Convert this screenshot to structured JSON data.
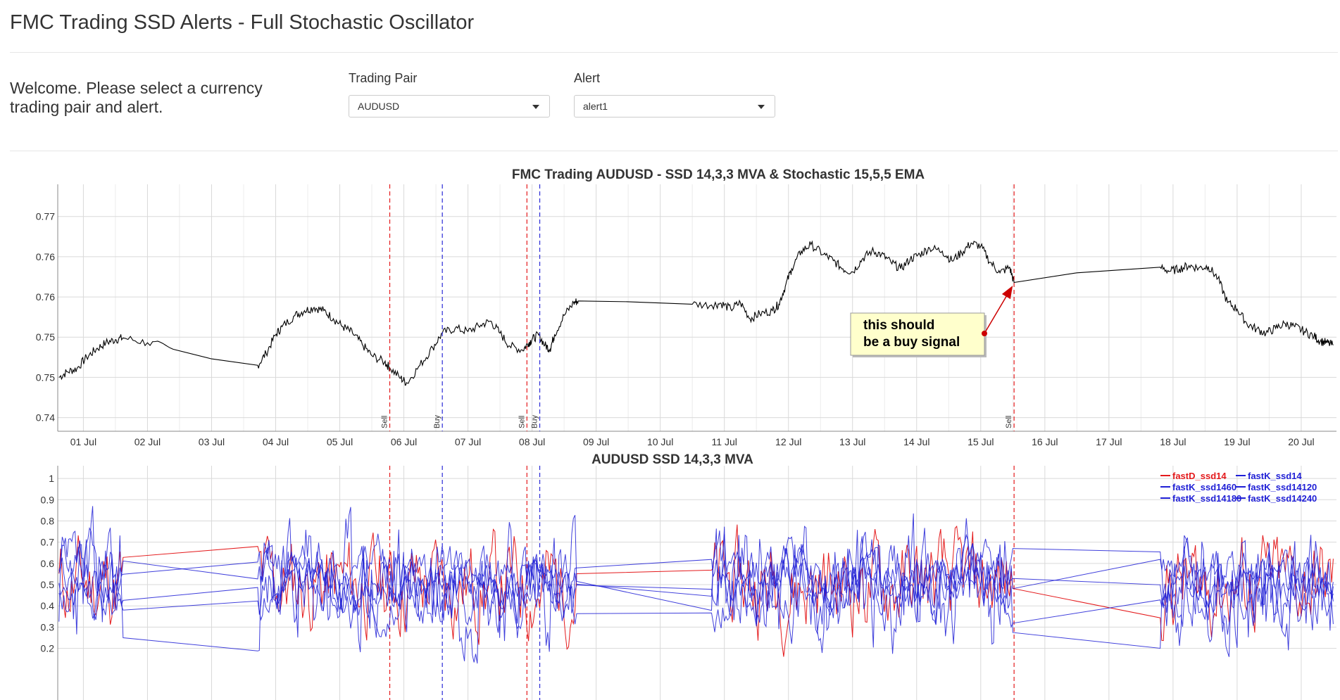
{
  "app": {
    "title": "FMC Trading SSD Alerts - Full Stochastic Oscillator",
    "welcome": "Welcome. Please select a currency trading pair and alert."
  },
  "controls": {
    "pair_label": "Trading Pair",
    "pair_value": "AUDUSD",
    "alert_label": "Alert",
    "alert_value": "alert1"
  },
  "colors": {
    "price_line": "#000000",
    "grid": "#d9d9d9",
    "sell_line": "#e41a1c",
    "buy_line": "#2b2bd6",
    "fastD": "#e41a1c",
    "fastK": "#1f1fd6",
    "annotation_bg": "#ffffcc"
  },
  "chart_data": [
    {
      "type": "line",
      "title": "FMC Trading AUDUSD - SSD 14,3,3 MVA & Stochastic 15,5,5 EMA",
      "x_ticks": [
        "01 Jul",
        "02 Jul",
        "03 Jul",
        "04 Jul",
        "05 Jul",
        "06 Jul",
        "07 Jul",
        "08 Jul",
        "09 Jul",
        "10 Jul",
        "11 Jul",
        "12 Jul",
        "13 Jul",
        "14 Jul",
        "15 Jul",
        "16 Jul",
        "17 Jul",
        "18 Jul",
        "19 Jul",
        "20 Jul"
      ],
      "x_range": [
        0.6,
        20.55
      ],
      "y_ticks": [
        {
          "v": 0.7425,
          "label": "0.74"
        },
        {
          "v": 0.7475,
          "label": "0.75"
        },
        {
          "v": 0.7525,
          "label": "0.75"
        },
        {
          "v": 0.7575,
          "label": "0.76"
        },
        {
          "v": 0.7625,
          "label": "0.76"
        },
        {
          "v": 0.7675,
          "label": "0.77"
        }
      ],
      "ylim": [
        0.7408,
        0.7715
      ],
      "grid": true,
      "series": [
        {
          "values": [
            [
              0.62,
              0.7475
            ],
            [
              0.75,
              0.7482
            ],
            [
              0.9,
              0.7486
            ],
            [
              1.05,
              0.75
            ],
            [
              1.2,
              0.751
            ],
            [
              1.35,
              0.7518
            ],
            [
              1.5,
              0.7522
            ],
            [
              1.62,
              0.7524
            ],
            [
              2.0,
              0.7518
            ],
            [
              2.4,
              0.751
            ],
            [
              3.0,
              0.7498
            ],
            [
              3.72,
              0.749
            ],
            [
              3.85,
              0.7505
            ],
            [
              4.0,
              0.7528
            ],
            [
              4.1,
              0.7538
            ],
            [
              4.3,
              0.7552
            ],
            [
              4.45,
              0.7558
            ],
            [
              4.6,
              0.7562
            ],
            [
              4.75,
              0.7558
            ],
            [
              4.9,
              0.7548
            ],
            [
              5.05,
              0.7538
            ],
            [
              5.2,
              0.753
            ],
            [
              5.35,
              0.7516
            ],
            [
              5.5,
              0.7502
            ],
            [
              5.7,
              0.7494
            ],
            [
              5.78,
              0.7487
            ],
            [
              5.95,
              0.7474
            ],
            [
              6.05,
              0.7468
            ],
            [
              6.25,
              0.749
            ],
            [
              6.45,
              0.7512
            ],
            [
              6.6,
              0.753
            ],
            [
              6.8,
              0.7536
            ],
            [
              7.0,
              0.7532
            ],
            [
              7.2,
              0.754
            ],
            [
              7.35,
              0.7545
            ],
            [
              7.5,
              0.753
            ],
            [
              7.65,
              0.7514
            ],
            [
              7.85,
              0.7509
            ],
            [
              7.95,
              0.7518
            ],
            [
              8.0,
              0.7522
            ],
            [
              8.1,
              0.7528
            ],
            [
              8.2,
              0.7515
            ],
            [
              8.28,
              0.751
            ],
            [
              8.35,
              0.7528
            ],
            [
              8.5,
              0.7552
            ],
            [
              8.65,
              0.7568
            ],
            [
              8.72,
              0.757
            ],
            [
              9.5,
              0.7569
            ],
            [
              10.5,
              0.7566
            ],
            [
              10.8,
              0.7565
            ],
            [
              10.95,
              0.7567
            ],
            [
              11.1,
              0.756
            ],
            [
              11.25,
              0.7568
            ],
            [
              11.4,
              0.7548
            ],
            [
              11.55,
              0.7554
            ],
            [
              11.75,
              0.7558
            ],
            [
              11.85,
              0.7566
            ],
            [
              11.95,
              0.7588
            ],
            [
              12.05,
              0.761
            ],
            [
              12.2,
              0.7632
            ],
            [
              12.35,
              0.764
            ],
            [
              12.55,
              0.7628
            ],
            [
              12.7,
              0.762
            ],
            [
              12.85,
              0.761
            ],
            [
              13.0,
              0.7606
            ],
            [
              13.15,
              0.7622
            ],
            [
              13.3,
              0.7632
            ],
            [
              13.45,
              0.7628
            ],
            [
              13.6,
              0.7618
            ],
            [
              13.75,
              0.761
            ],
            [
              13.9,
              0.7622
            ],
            [
              14.05,
              0.7628
            ],
            [
              14.2,
              0.7636
            ],
            [
              14.4,
              0.7632
            ],
            [
              14.55,
              0.762
            ],
            [
              14.7,
              0.763
            ],
            [
              14.85,
              0.7642
            ],
            [
              15.0,
              0.7638
            ],
            [
              15.15,
              0.7618
            ],
            [
              15.3,
              0.7605
            ],
            [
              15.45,
              0.7612
            ],
            [
              15.52,
              0.7593
            ],
            [
              16.5,
              0.7605
            ],
            [
              17.8,
              0.7612
            ],
            [
              17.95,
              0.7607
            ],
            [
              18.1,
              0.761
            ],
            [
              18.25,
              0.7614
            ],
            [
              18.4,
              0.7611
            ],
            [
              18.55,
              0.7613
            ],
            [
              18.7,
              0.7598
            ],
            [
              18.85,
              0.7568
            ],
            [
              19.0,
              0.756
            ],
            [
              19.15,
              0.7542
            ],
            [
              19.3,
              0.7535
            ],
            [
              19.45,
              0.753
            ],
            [
              19.6,
              0.7536
            ],
            [
              19.75,
              0.7542
            ],
            [
              19.9,
              0.7538
            ],
            [
              20.05,
              0.7532
            ],
            [
              20.2,
              0.7526
            ],
            [
              20.3,
              0.752
            ],
            [
              20.4,
              0.7518
            ],
            [
              20.5,
              0.7515
            ]
          ]
        }
      ],
      "signals": [
        {
          "x": 5.78,
          "label": "Sell",
          "type": "sell"
        },
        {
          "x": 6.6,
          "label": "Buy",
          "type": "buy"
        },
        {
          "x": 7.92,
          "label": "Sell",
          "type": "sell"
        },
        {
          "x": 8.12,
          "label": "Buy",
          "type": "buy"
        },
        {
          "x": 15.52,
          "label": "Sell",
          "type": "sell"
        }
      ],
      "annotation": {
        "text": [
          "this should",
          "be a buy signal"
        ],
        "x": 15.52,
        "y": 0.7592
      }
    },
    {
      "type": "line",
      "title": "AUDUSD SSD 14,3,3 MVA",
      "x_range": [
        0.6,
        20.55
      ],
      "y_ticks": [
        0.2,
        0.3,
        0.4,
        0.5,
        0.6,
        0.7,
        0.8,
        0.9,
        1
      ],
      "ylim": [
        0,
        1.06
      ],
      "legend_position": "top-right",
      "series": [
        {
          "name": "fastD_ssd14",
          "color_key": "fastD"
        },
        {
          "name": "fastK_ssd14",
          "color_key": "fastK"
        },
        {
          "name": "fastK_ssd1460",
          "color_key": "fastK"
        },
        {
          "name": "fastK_ssd14120",
          "color_key": "fastK"
        },
        {
          "name": "fastK_ssd14180",
          "color_key": "fastK"
        },
        {
          "name": "fastK_ssd14240",
          "color_key": "fastK"
        }
      ]
    }
  ]
}
